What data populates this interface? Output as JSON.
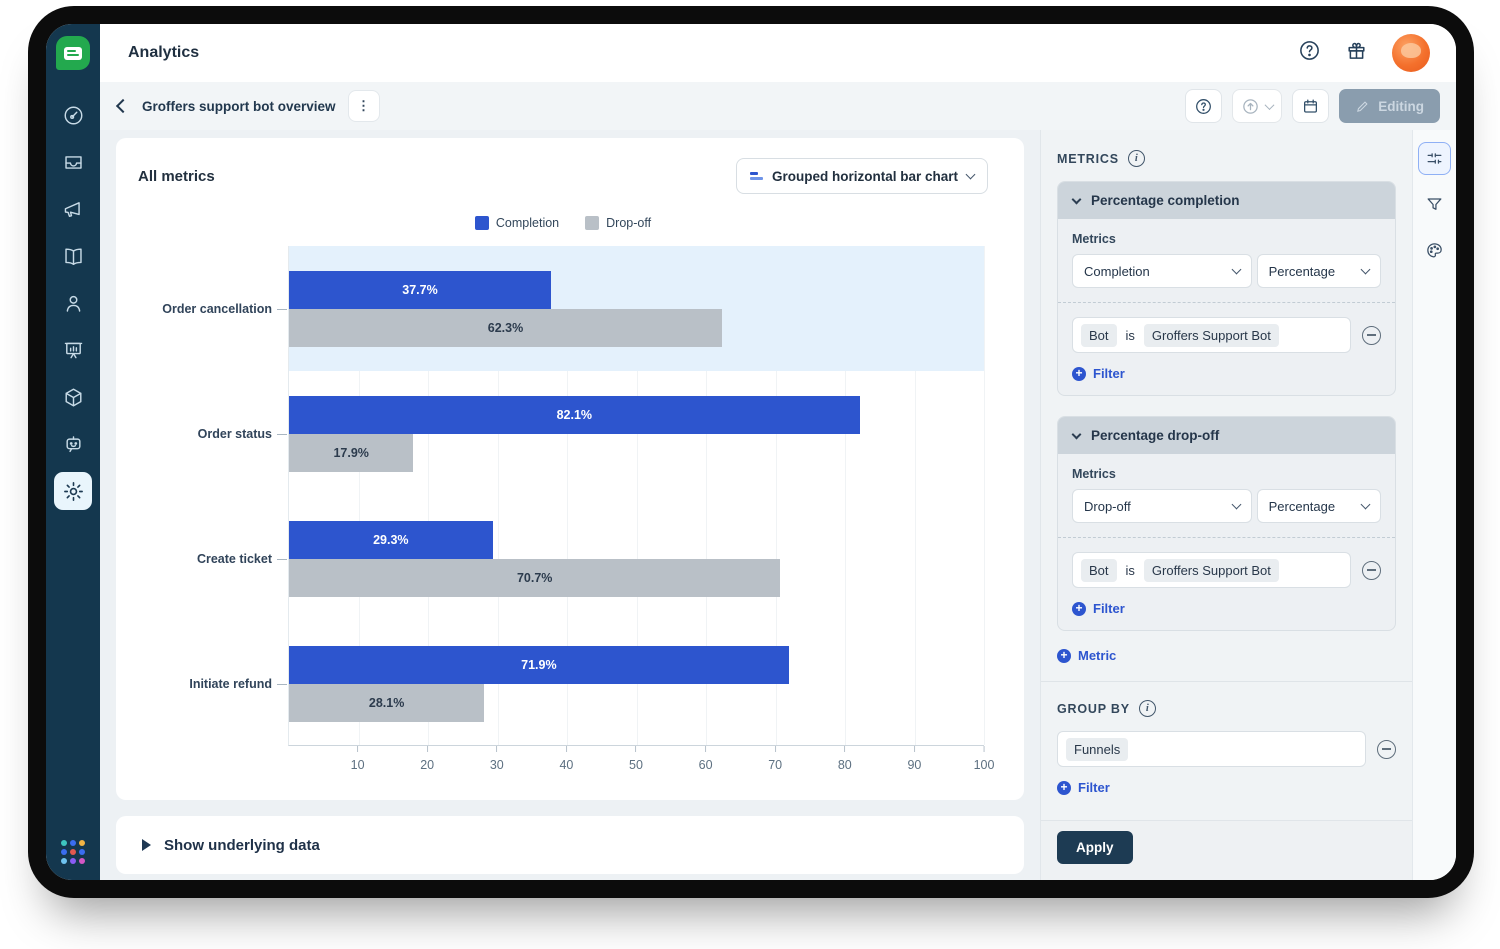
{
  "header": {
    "title": "Analytics"
  },
  "toolbar": {
    "breadcrumb": "Groffers support bot overview",
    "editing_label": "Editing"
  },
  "sidebar": {
    "items": [
      {
        "icon": "dashboard-icon"
      },
      {
        "icon": "inbox-icon"
      },
      {
        "icon": "campaigns-megaphone-icon"
      },
      {
        "icon": "knowledge-book-icon"
      },
      {
        "icon": "contacts-person-icon"
      },
      {
        "icon": "analytics-presentation-icon"
      },
      {
        "icon": "integrations-cube-icon"
      },
      {
        "icon": "bot-icon"
      },
      {
        "icon": "settings-gear-icon",
        "active": true
      }
    ],
    "app_switcher_colors": [
      "#3ec6c0",
      "#3a6df0",
      "#f2b344",
      "#3a6df0",
      "#e25950",
      "#3a6df0",
      "#6fc3f0",
      "#8a5cf5",
      "#d457c5"
    ]
  },
  "chart_card": {
    "title": "All metrics",
    "chart_type_label": "Grouped horizontal bar chart"
  },
  "chart_data": {
    "type": "bar",
    "orientation": "horizontal",
    "grouped": true,
    "title": "All metrics",
    "categories": [
      "Order cancellation",
      "Order status",
      "Create ticket",
      "Initiate refund"
    ],
    "series": [
      {
        "name": "Completion",
        "color": "#2d55ce",
        "values": [
          37.7,
          82.1,
          29.3,
          71.9
        ]
      },
      {
        "name": "Drop-off",
        "color": "#b9c0c7",
        "values": [
          62.3,
          17.9,
          70.7,
          28.1
        ]
      }
    ],
    "value_suffix": "%",
    "xlim": [
      0,
      100
    ],
    "xticks": [
      10,
      20,
      30,
      40,
      50,
      60,
      70,
      80,
      90,
      100
    ],
    "grid": true,
    "legend_position": "top",
    "highlighted_category": "Order cancellation"
  },
  "underlying_data": {
    "label": "Show underlying data"
  },
  "panel": {
    "metrics_label": "METRICS",
    "sections": [
      {
        "title": "Percentage completion",
        "metrics_label": "Metrics",
        "metric": "Completion",
        "aggregation": "Percentage",
        "filter": {
          "field": "Bot",
          "operator": "is",
          "value": "Groffers Support Bot"
        },
        "add_filter_label": "Filter"
      },
      {
        "title": "Percentage drop-off",
        "metrics_label": "Metrics",
        "metric": "Drop-off",
        "aggregation": "Percentage",
        "filter": {
          "field": "Bot",
          "operator": "is",
          "value": "Groffers Support Bot"
        },
        "add_filter_label": "Filter"
      }
    ],
    "add_metric_label": "Metric",
    "group_by": {
      "label": "GROUP BY",
      "value": "Funnels",
      "add_filter_label": "Filter"
    },
    "apply_label": "Apply"
  },
  "colors": {
    "accent_blue": "#2d55ce",
    "bar_gray": "#b9c0c7",
    "highlight_band": "#e4f1fc",
    "sidebar_bg": "#14374e",
    "apply_bg": "#1d3b53",
    "link_blue": "#2d55cf",
    "logo_green": "#23a94e"
  }
}
